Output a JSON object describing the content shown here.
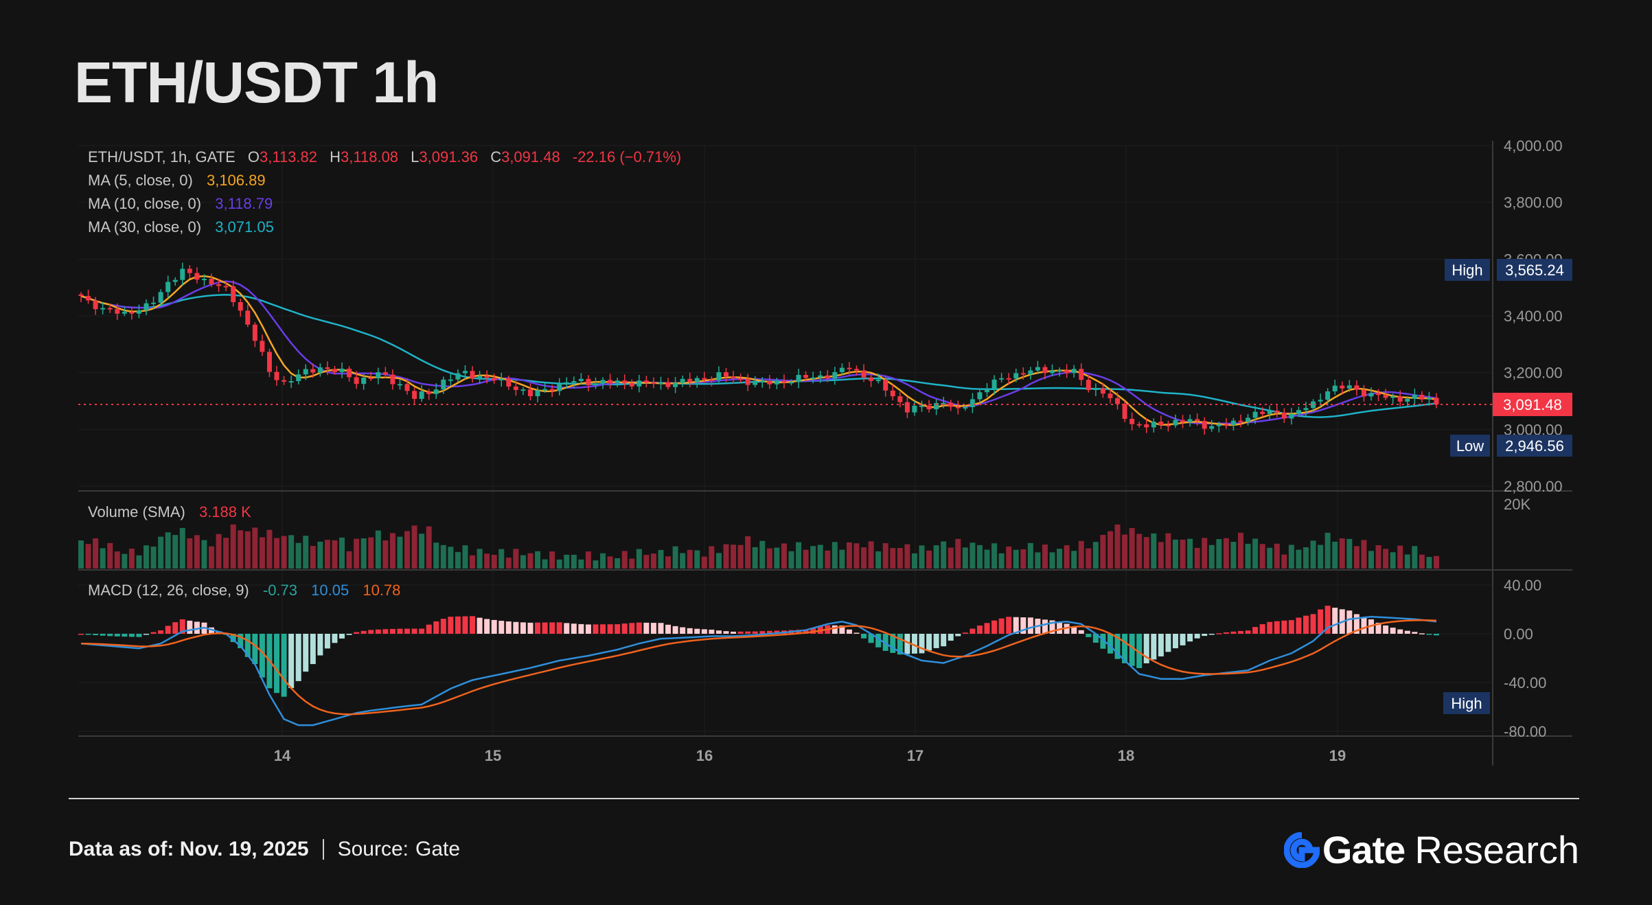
{
  "title": "ETH/USDT 1h",
  "legend": {
    "symbol": "ETH/USDT, 1h, GATE",
    "o_label": "O",
    "o": "3,113.82",
    "h_label": "H",
    "h": "3,118.08",
    "l_label": "L",
    "l": "3,091.36",
    "c_label": "C",
    "c": "3,091.48",
    "change": "-22.16 (−0.71%)",
    "ma5_label": "MA (5, close, 0)",
    "ma5": "3,106.89",
    "ma10_label": "MA (10, close, 0)",
    "ma10": "3,118.79",
    "ma30_label": "MA (30, close, 0)",
    "ma30": "3,071.05",
    "volume_label": "Volume (SMA)",
    "volume": "3.188 K",
    "macd_label": "MACD (12, 26, close, 9)",
    "macd_hist": "-0.73",
    "macd_line": "10.05",
    "macd_signal": "10.78"
  },
  "badges": {
    "high_label": "High",
    "high": "3,565.24",
    "low_label": "Low",
    "low": "2,946.56",
    "last": "3,091.48",
    "macd_high_label": "High"
  },
  "colors": {
    "up": "#26a69a",
    "down": "#ef5350",
    "up_fill": "#22ab94",
    "down_fill": "#f23645",
    "vol_up": "#1e6e52",
    "vol_down": "#8e2434",
    "ma5": "#f5a623",
    "ma10": "#6a3de8",
    "ma30": "#1fb3c9",
    "macd_line": "#2f8fdb",
    "macd_signal": "#f0631e",
    "badge": "#1c3461",
    "last_badge": "#f23645",
    "brand": "#1f6dfa"
  },
  "footer": {
    "date_label": "Data as of: Nov. 19, 2025",
    "source_label": "Source:",
    "source": "Gate",
    "brand_gate": "Gate",
    "brand_research": "Research"
  },
  "chart_data": {
    "type": "candlestick",
    "x_ticks": [
      "14",
      "15",
      "16",
      "17",
      "18",
      "19"
    ],
    "price_axis": {
      "ticks": [
        "4,000.00",
        "3,800.00",
        "3,600.00",
        "3,400.00",
        "3,200.00",
        "3,000.00",
        "2,800.00"
      ],
      "ylim": [
        2800,
        4000
      ]
    },
    "volume_axis": {
      "ticks": [
        "20K"
      ],
      "ylim": [
        0,
        22000
      ]
    },
    "macd_axis": {
      "ticks": [
        "40.00",
        "0.00",
        "-40.00",
        "-80.00"
      ],
      "ylim": [
        -85,
        40
      ]
    },
    "price_anchors": [
      [
        0,
        3470
      ],
      [
        3,
        3420
      ],
      [
        6,
        3410
      ],
      [
        9,
        3430
      ],
      [
        10,
        3450
      ],
      [
        12,
        3520
      ],
      [
        14,
        3555
      ],
      [
        16,
        3535
      ],
      [
        18,
        3520
      ],
      [
        20,
        3490
      ],
      [
        22,
        3420
      ],
      [
        24,
        3320
      ],
      [
        26,
        3200
      ],
      [
        28,
        3165
      ],
      [
        30,
        3190
      ],
      [
        33,
        3220
      ],
      [
        36,
        3200
      ],
      [
        38,
        3170
      ],
      [
        41,
        3195
      ],
      [
        44,
        3160
      ],
      [
        46,
        3110
      ],
      [
        48,
        3130
      ],
      [
        50,
        3170
      ],
      [
        53,
        3200
      ],
      [
        56,
        3180
      ],
      [
        59,
        3160
      ],
      [
        62,
        3120
      ],
      [
        65,
        3150
      ],
      [
        68,
        3170
      ],
      [
        72,
        3165
      ],
      [
        76,
        3165
      ],
      [
        80,
        3160
      ],
      [
        84,
        3170
      ],
      [
        88,
        3190
      ],
      [
        91,
        3175
      ],
      [
        94,
        3160
      ],
      [
        98,
        3175
      ],
      [
        101,
        3185
      ],
      [
        104,
        3195
      ],
      [
        106,
        3220
      ],
      [
        108,
        3190
      ],
      [
        110,
        3160
      ],
      [
        112,
        3120
      ],
      [
        114,
        3070
      ],
      [
        117,
        3080
      ],
      [
        119,
        3100
      ],
      [
        121,
        3060
      ],
      [
        123,
        3110
      ],
      [
        125,
        3150
      ],
      [
        128,
        3190
      ],
      [
        131,
        3205
      ],
      [
        134,
        3210
      ],
      [
        137,
        3200
      ],
      [
        139,
        3150
      ],
      [
        141,
        3130
      ],
      [
        143,
        3080
      ],
      [
        145,
        3020
      ],
      [
        147,
        3010
      ],
      [
        150,
        3025
      ],
      [
        153,
        3030
      ],
      [
        156,
        3010
      ],
      [
        159,
        3020
      ],
      [
        161,
        3050
      ],
      [
        164,
        3060
      ],
      [
        167,
        3050
      ],
      [
        170,
        3090
      ],
      [
        172,
        3140
      ],
      [
        175,
        3150
      ],
      [
        178,
        3120
      ],
      [
        181,
        3110
      ],
      [
        184,
        3110
      ],
      [
        186,
        3108
      ],
      [
        187,
        3091
      ]
    ],
    "volume_anchors": [
      [
        0,
        9
      ],
      [
        3,
        8
      ],
      [
        6,
        5
      ],
      [
        9,
        6
      ],
      [
        11,
        10
      ],
      [
        13,
        12
      ],
      [
        15,
        11
      ],
      [
        18,
        8
      ],
      [
        21,
        13
      ],
      [
        24,
        12
      ],
      [
        26,
        11
      ],
      [
        29,
        10
      ],
      [
        31,
        9
      ],
      [
        33,
        8
      ],
      [
        35,
        10
      ],
      [
        37,
        7
      ],
      [
        39,
        10
      ],
      [
        41,
        11
      ],
      [
        43,
        10
      ],
      [
        46,
        13
      ],
      [
        48,
        12
      ],
      [
        50,
        7
      ],
      [
        53,
        6
      ],
      [
        56,
        5
      ],
      [
        59,
        5
      ],
      [
        62,
        5
      ],
      [
        65,
        4
      ],
      [
        68,
        4
      ],
      [
        71,
        4
      ],
      [
        74,
        4
      ],
      [
        77,
        5
      ],
      [
        80,
        5
      ],
      [
        83,
        6
      ],
      [
        86,
        5
      ],
      [
        89,
        7
      ],
      [
        92,
        9
      ],
      [
        95,
        7
      ],
      [
        98,
        7
      ],
      [
        101,
        7
      ],
      [
        104,
        7
      ],
      [
        107,
        8
      ],
      [
        110,
        7
      ],
      [
        113,
        7
      ],
      [
        116,
        6
      ],
      [
        119,
        8
      ],
      [
        122,
        8
      ],
      [
        125,
        7
      ],
      [
        128,
        6
      ],
      [
        131,
        7
      ],
      [
        134,
        6
      ],
      [
        137,
        7
      ],
      [
        140,
        8
      ],
      [
        142,
        13
      ],
      [
        145,
        12
      ],
      [
        148,
        10
      ],
      [
        151,
        10
      ],
      [
        154,
        8
      ],
      [
        157,
        9
      ],
      [
        160,
        10
      ],
      [
        163,
        8
      ],
      [
        166,
        6
      ],
      [
        169,
        7
      ],
      [
        172,
        10
      ],
      [
        175,
        9
      ],
      [
        178,
        7
      ],
      [
        181,
        6
      ],
      [
        184,
        6
      ],
      [
        187,
        3
      ]
    ],
    "macd_anchors": [
      [
        0,
        -8
      ],
      [
        4,
        -10
      ],
      [
        8,
        -12
      ],
      [
        11,
        -8
      ],
      [
        14,
        2
      ],
      [
        17,
        5
      ],
      [
        20,
        0
      ],
      [
        22,
        -10
      ],
      [
        24,
        -25
      ],
      [
        26,
        -50
      ],
      [
        28,
        -70
      ],
      [
        30,
        -75
      ],
      [
        32,
        -75
      ],
      [
        35,
        -70
      ],
      [
        38,
        -65
      ],
      [
        40,
        -63
      ],
      [
        44,
        -60
      ],
      [
        47,
        -58
      ],
      [
        51,
        -45
      ],
      [
        54,
        -38
      ],
      [
        58,
        -33
      ],
      [
        62,
        -28
      ],
      [
        66,
        -22
      ],
      [
        70,
        -18
      ],
      [
        74,
        -13
      ],
      [
        77,
        -8
      ],
      [
        80,
        -4
      ],
      [
        84,
        -3
      ],
      [
        87,
        -2
      ],
      [
        90,
        -2
      ],
      [
        93,
        -1
      ],
      [
        97,
        1
      ],
      [
        100,
        3
      ],
      [
        103,
        8
      ],
      [
        105,
        10
      ],
      [
        107,
        7
      ],
      [
        109,
        0
      ],
      [
        111,
        -8
      ],
      [
        113,
        -15
      ],
      [
        116,
        -22
      ],
      [
        119,
        -24
      ],
      [
        122,
        -18
      ],
      [
        125,
        -10
      ],
      [
        128,
        -1
      ],
      [
        131,
        5
      ],
      [
        134,
        9
      ],
      [
        136,
        10
      ],
      [
        138,
        8
      ],
      [
        140,
        0
      ],
      [
        142,
        -10
      ],
      [
        144,
        -22
      ],
      [
        146,
        -33
      ],
      [
        149,
        -37
      ],
      [
        152,
        -37
      ],
      [
        155,
        -34
      ],
      [
        158,
        -32
      ],
      [
        161,
        -30
      ],
      [
        164,
        -22
      ],
      [
        167,
        -16
      ],
      [
        170,
        -6
      ],
      [
        172,
        5
      ],
      [
        175,
        12
      ],
      [
        178,
        14
      ],
      [
        181,
        13
      ],
      [
        184,
        12
      ],
      [
        187,
        10
      ]
    ]
  }
}
